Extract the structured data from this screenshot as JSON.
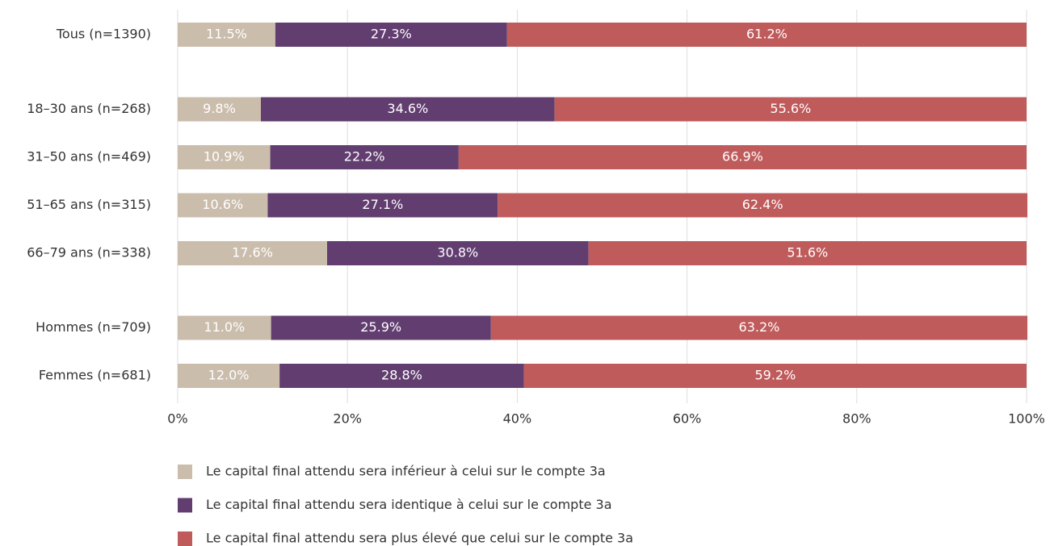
{
  "chart_data": {
    "type": "stacked_bar_horizontal",
    "categories": [
      "Tous (n=1390)",
      null,
      "18–30 ans (n=268)",
      "31–50 ans (n=469)",
      "51–65 ans (n=315)",
      "66–79 ans (n=338)",
      null,
      "Hommes (n=709)",
      "Femmes (n=681)"
    ],
    "series": [
      {
        "name": "Le capital final attendu sera inférieur à celui sur le compte 3a",
        "color": "#cbbdac",
        "values": [
          11.5,
          null,
          9.8,
          10.9,
          10.6,
          17.6,
          null,
          11.0,
          12.0
        ],
        "value_labels": [
          "11.5%",
          null,
          "9.8%",
          "10.9%",
          "10.6%",
          "17.6%",
          null,
          "11.0%",
          "12.0%"
        ]
      },
      {
        "name": "Le capital final attendu sera identique à celui sur le compte 3a",
        "color": "#623e70",
        "values": [
          27.3,
          null,
          34.6,
          22.2,
          27.1,
          30.8,
          null,
          25.9,
          28.8
        ],
        "value_labels": [
          "27.3%",
          null,
          "34.6%",
          "22.2%",
          "27.1%",
          "30.8%",
          null,
          "25.9%",
          "28.8%"
        ]
      },
      {
        "name": "Le capital final attendu sera plus élevé que celui sur le compte 3a",
        "color": "#c05b5c",
        "values": [
          61.2,
          null,
          55.6,
          66.9,
          62.4,
          51.6,
          null,
          63.2,
          59.2
        ],
        "value_labels": [
          "61.2%",
          null,
          "55.6%",
          "66.9%",
          "62.4%",
          "51.6%",
          null,
          "63.2%",
          "59.2%"
        ]
      }
    ],
    "xlim": [
      0,
      100
    ],
    "xticks": [
      {
        "value": 0,
        "label": "0%"
      },
      {
        "value": 20,
        "label": "20%"
      },
      {
        "value": 40,
        "label": "40%"
      },
      {
        "value": 60,
        "label": "60%"
      },
      {
        "value": 80,
        "label": "80%"
      },
      {
        "value": 100,
        "label": "100%"
      }
    ],
    "grid": true,
    "legend": "bottom"
  }
}
